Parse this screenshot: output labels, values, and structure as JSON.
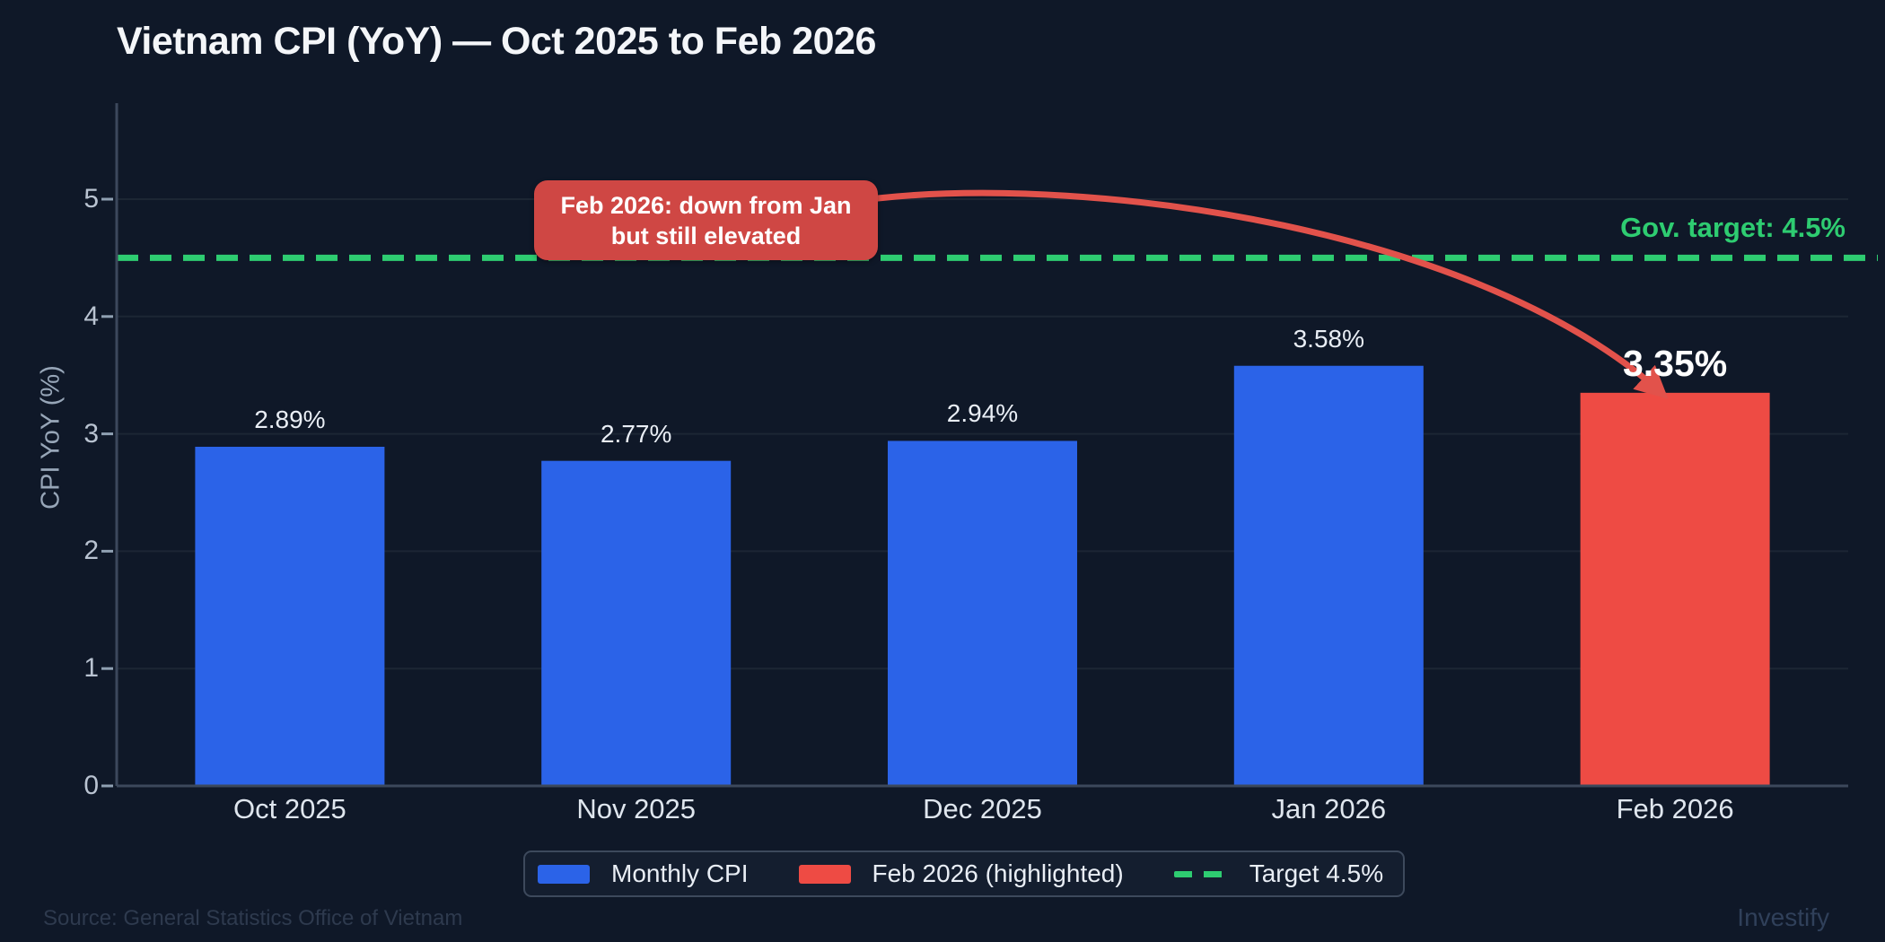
{
  "title": "Vietnam CPI (YoY) — Oct 2025 to Feb 2026",
  "chart_data": {
    "type": "bar",
    "categories": [
      "Oct 2025",
      "Nov 2025",
      "Dec 2025",
      "Jan 2026",
      "Feb 2026"
    ],
    "values": [
      2.89,
      2.77,
      2.94,
      3.58,
      3.35
    ],
    "value_labels": [
      "2.89%",
      "2.77%",
      "2.94%",
      "3.58%",
      "3.35%"
    ],
    "highlight_index": 4,
    "title": "Vietnam CPI (YoY) — Oct 2025 to Feb 2026",
    "xlabel": "",
    "ylabel": "CPI YoY (%)",
    "ylim": [
      0,
      5.5
    ],
    "y_ticks": [
      0,
      1,
      2,
      3,
      4,
      5
    ],
    "grid": "horizontal",
    "legend_position": "bottom-center",
    "target_line": {
      "value": 4.5,
      "label": "Gov. target: 4.5%",
      "style": "dashed"
    },
    "annotation": {
      "line1": "Feb 2026: down from Jan",
      "line2": "but still elevated",
      "arrow_to_category": "Feb 2026"
    }
  },
  "colors": {
    "background": "#0f1828",
    "bar_blue": "#2b63e8",
    "bar_red": "#ee4b44",
    "callout_red": "#cf4744",
    "arrow_red": "#e2524b",
    "target_green": "#2ecc71",
    "gridline": "#1c2634",
    "axis": "#3c485c",
    "tick_dash": "#8fa0b2"
  },
  "legend": {
    "items": [
      {
        "label": "Monthly CPI",
        "swatch": "blue-rect"
      },
      {
        "label": "Feb 2026 (highlighted)",
        "swatch": "red-rect"
      },
      {
        "label": "Target 4.5%",
        "swatch": "green-dash"
      }
    ]
  },
  "footer": {
    "source": "Source: General Statistics Office of Vietnam",
    "watermark": "Investify"
  }
}
